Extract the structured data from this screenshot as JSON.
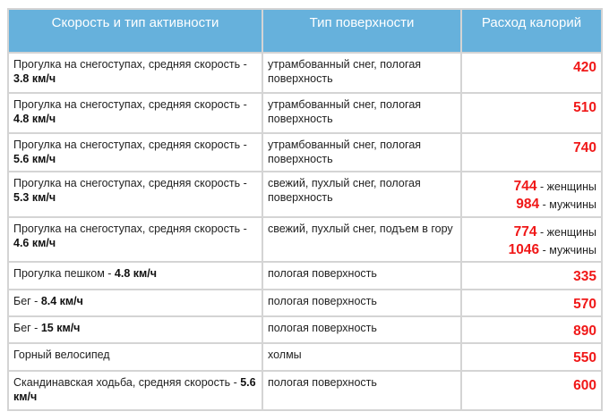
{
  "table": {
    "headers": [
      "Скорость и тип активности",
      "Тип поверхности",
      "Расход калорий"
    ],
    "header_color": "#66b1dc",
    "value_color": "#f01818",
    "rows": [
      {
        "activity": "Прогулка на снегоступах, средняя скорость - ",
        "speed": "3.8 км/ч",
        "surface": "утрамбованный снег, пологая поверхность",
        "calories": [
          {
            "value": "420",
            "note": ""
          }
        ]
      },
      {
        "activity": "Прогулка на снегоступах, средняя скорость - ",
        "speed": "4.8 км/ч",
        "surface": "утрамбованный снег, пологая поверхность",
        "calories": [
          {
            "value": "510",
            "note": ""
          }
        ]
      },
      {
        "activity": "Прогулка на снегоступах, средняя скорость - ",
        "speed": "5.6 км/ч",
        "surface": "утрамбованный снег, пологая поверхность",
        "calories": [
          {
            "value": "740",
            "note": ""
          }
        ]
      },
      {
        "activity": "Прогулка на снегоступах, средняя скорость - ",
        "speed": "5.3 км/ч",
        "surface": "свежий, пухлый снег, пологая поверхность",
        "calories": [
          {
            "value": "744",
            "note": " - женщины"
          },
          {
            "value": "984",
            "note": " - мужчины"
          }
        ]
      },
      {
        "activity": "Прогулка на снегоступах, средняя скорость - ",
        "speed": "4.6 км/ч",
        "surface": "свежий, пухлый снег, подъем в гору",
        "calories": [
          {
            "value": "774",
            "note": " - женщины"
          },
          {
            "value": "1046",
            "note": " - мужчины"
          }
        ]
      },
      {
        "activity": "Прогулка пешком - ",
        "speed": "4.8 км/ч",
        "surface": "пологая поверхность",
        "calories": [
          {
            "value": "335",
            "note": ""
          }
        ]
      },
      {
        "activity": "Бег - ",
        "speed": "8.4 км/ч",
        "surface": "пологая поверхность",
        "calories": [
          {
            "value": "570",
            "note": ""
          }
        ]
      },
      {
        "activity": "Бег - ",
        "speed": "15 км/ч",
        "surface": "пологая поверхность",
        "calories": [
          {
            "value": "890",
            "note": ""
          }
        ]
      },
      {
        "activity": "Горный велосипед",
        "speed": "",
        "surface": "холмы",
        "calories": [
          {
            "value": "550",
            "note": ""
          }
        ]
      },
      {
        "activity": "Скандинавская ходьба, средняя скорость - ",
        "speed": "5.6 км/ч",
        "surface": "пологая поверхность",
        "calories": [
          {
            "value": "600",
            "note": ""
          }
        ]
      }
    ]
  }
}
